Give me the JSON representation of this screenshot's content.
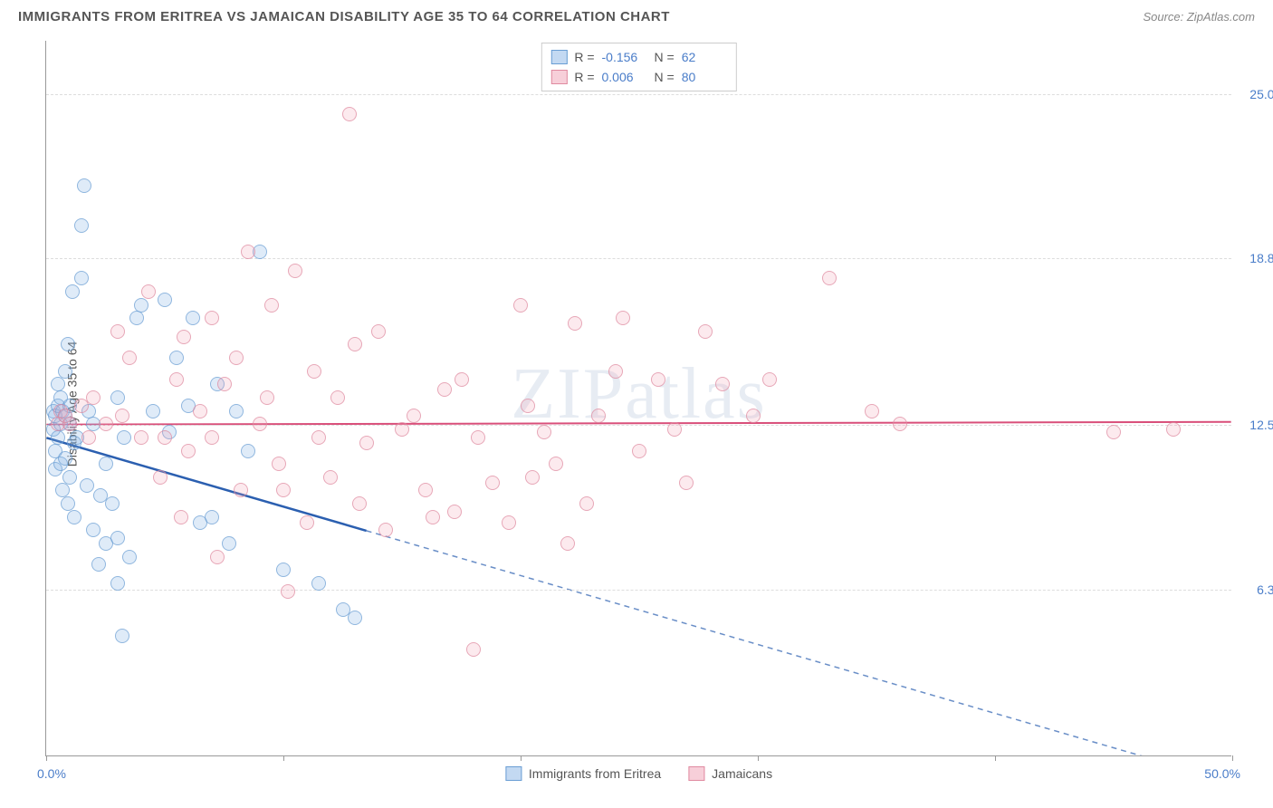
{
  "header": {
    "title": "IMMIGRANTS FROM ERITREA VS JAMAICAN DISABILITY AGE 35 TO 64 CORRELATION CHART",
    "source_prefix": "Source: ",
    "source": "ZipAtlas.com"
  },
  "watermark": "ZIPatlas",
  "chart": {
    "type": "scatter",
    "ylabel": "Disability Age 35 to 64",
    "xlim": [
      0,
      50
    ],
    "ylim": [
      0,
      27
    ],
    "x_ticks": [
      0,
      10,
      20,
      30,
      40,
      50
    ],
    "x_tick_labels": {
      "left": "0.0%",
      "right": "50.0%"
    },
    "y_gridlines": [
      6.3,
      12.5,
      18.8,
      25.0
    ],
    "y_tick_labels": [
      "6.3%",
      "12.5%",
      "18.8%",
      "25.0%"
    ],
    "grid_color": "#dddddd",
    "background_color": "#ffffff",
    "axis_color": "#999999",
    "tick_label_color": "#4a7dc9",
    "marker_size": 16,
    "series": [
      {
        "name": "Immigrants from Eritrea",
        "color_fill": "rgba(135,180,230,0.35)",
        "color_stroke": "#6a9ed4",
        "R": "-0.156",
        "N": "62",
        "trend": {
          "y_at_x0": 12.0,
          "y_at_xmax": -1.0,
          "solid_until_x": 13.5,
          "stroke": "#2b5fb0",
          "width": 2.5
        },
        "points": [
          [
            0.3,
            12.3
          ],
          [
            0.3,
            13.0
          ],
          [
            0.4,
            12.8
          ],
          [
            0.4,
            11.5
          ],
          [
            0.4,
            10.8
          ],
          [
            0.5,
            13.2
          ],
          [
            0.5,
            12.0
          ],
          [
            0.5,
            14.0
          ],
          [
            0.6,
            11.0
          ],
          [
            0.6,
            12.5
          ],
          [
            0.6,
            13.5
          ],
          [
            0.7,
            10.0
          ],
          [
            0.7,
            13.0
          ],
          [
            0.8,
            11.2
          ],
          [
            0.8,
            12.8
          ],
          [
            0.8,
            14.5
          ],
          [
            0.9,
            15.5
          ],
          [
            0.9,
            9.5
          ],
          [
            1.0,
            12.5
          ],
          [
            1.0,
            10.5
          ],
          [
            1.0,
            13.2
          ],
          [
            1.1,
            17.5
          ],
          [
            1.2,
            11.8
          ],
          [
            1.2,
            9.0
          ],
          [
            1.3,
            12.0
          ],
          [
            1.5,
            18.0
          ],
          [
            1.5,
            20.0
          ],
          [
            1.6,
            21.5
          ],
          [
            1.7,
            10.2
          ],
          [
            1.8,
            13.0
          ],
          [
            2.0,
            8.5
          ],
          [
            2.0,
            12.5
          ],
          [
            2.2,
            7.2
          ],
          [
            2.3,
            9.8
          ],
          [
            2.5,
            8.0
          ],
          [
            2.5,
            11.0
          ],
          [
            2.8,
            9.5
          ],
          [
            3.0,
            8.2
          ],
          [
            3.0,
            6.5
          ],
          [
            3.0,
            13.5
          ],
          [
            3.2,
            4.5
          ],
          [
            3.3,
            12.0
          ],
          [
            3.5,
            7.5
          ],
          [
            3.8,
            16.5
          ],
          [
            4.0,
            17.0
          ],
          [
            4.5,
            13.0
          ],
          [
            5.0,
            17.2
          ],
          [
            5.2,
            12.2
          ],
          [
            5.5,
            15.0
          ],
          [
            6.0,
            13.2
          ],
          [
            6.2,
            16.5
          ],
          [
            6.5,
            8.8
          ],
          [
            7.0,
            9.0
          ],
          [
            7.2,
            14.0
          ],
          [
            7.7,
            8.0
          ],
          [
            8.0,
            13.0
          ],
          [
            8.5,
            11.5
          ],
          [
            9.0,
            19.0
          ],
          [
            10.0,
            7.0
          ],
          [
            11.5,
            6.5
          ],
          [
            12.5,
            5.5
          ],
          [
            13.0,
            5.2
          ]
        ]
      },
      {
        "name": "Jamaicans",
        "color_fill": "rgba(240,160,180,0.30)",
        "color_stroke": "#e08aa0",
        "R": "0.006",
        "N": "80",
        "trend": {
          "y_at_x0": 12.5,
          "y_at_xmax": 12.6,
          "solid_until_x": 50,
          "stroke": "#d94f7a",
          "width": 2
        },
        "points": [
          [
            0.5,
            12.5
          ],
          [
            0.6,
            13.0
          ],
          [
            0.8,
            12.8
          ],
          [
            1.0,
            12.5
          ],
          [
            1.5,
            13.2
          ],
          [
            1.8,
            12.0
          ],
          [
            2.0,
            13.5
          ],
          [
            2.5,
            12.5
          ],
          [
            3.0,
            16.0
          ],
          [
            3.2,
            12.8
          ],
          [
            3.5,
            15.0
          ],
          [
            4.0,
            12.0
          ],
          [
            4.3,
            17.5
          ],
          [
            4.8,
            10.5
          ],
          [
            5.0,
            12.0
          ],
          [
            5.5,
            14.2
          ],
          [
            5.7,
            9.0
          ],
          [
            5.8,
            15.8
          ],
          [
            6.0,
            11.5
          ],
          [
            6.5,
            13.0
          ],
          [
            7.0,
            16.5
          ],
          [
            7.0,
            12.0
          ],
          [
            7.2,
            7.5
          ],
          [
            7.5,
            14.0
          ],
          [
            8.0,
            15.0
          ],
          [
            8.2,
            10.0
          ],
          [
            8.5,
            19.0
          ],
          [
            9.0,
            12.5
          ],
          [
            9.3,
            13.5
          ],
          [
            9.5,
            17.0
          ],
          [
            9.8,
            11.0
          ],
          [
            10.0,
            10.0
          ],
          [
            10.2,
            6.2
          ],
          [
            10.5,
            18.3
          ],
          [
            11.0,
            8.8
          ],
          [
            11.3,
            14.5
          ],
          [
            11.5,
            12.0
          ],
          [
            12.0,
            10.5
          ],
          [
            12.3,
            13.5
          ],
          [
            12.8,
            24.2
          ],
          [
            13.0,
            15.5
          ],
          [
            13.2,
            9.5
          ],
          [
            13.5,
            11.8
          ],
          [
            14.0,
            16.0
          ],
          [
            14.3,
            8.5
          ],
          [
            15.0,
            12.3
          ],
          [
            15.5,
            12.8
          ],
          [
            16.0,
            10.0
          ],
          [
            16.3,
            9.0
          ],
          [
            16.8,
            13.8
          ],
          [
            17.2,
            9.2
          ],
          [
            17.5,
            14.2
          ],
          [
            18.0,
            4.0
          ],
          [
            18.2,
            12.0
          ],
          [
            18.8,
            10.3
          ],
          [
            19.5,
            8.8
          ],
          [
            20.0,
            17.0
          ],
          [
            20.3,
            13.2
          ],
          [
            20.5,
            10.5
          ],
          [
            21.0,
            12.2
          ],
          [
            21.5,
            11.0
          ],
          [
            22.0,
            8.0
          ],
          [
            22.3,
            16.3
          ],
          [
            22.8,
            9.5
          ],
          [
            23.3,
            12.8
          ],
          [
            24.0,
            14.5
          ],
          [
            24.3,
            16.5
          ],
          [
            25.0,
            11.5
          ],
          [
            25.8,
            14.2
          ],
          [
            26.5,
            12.3
          ],
          [
            27.0,
            10.3
          ],
          [
            27.8,
            16.0
          ],
          [
            28.5,
            14.0
          ],
          [
            29.8,
            12.8
          ],
          [
            30.5,
            14.2
          ],
          [
            33.0,
            18.0
          ],
          [
            34.8,
            13.0
          ],
          [
            36.0,
            12.5
          ],
          [
            45.0,
            12.2
          ],
          [
            47.5,
            12.3
          ]
        ]
      }
    ],
    "bottom_legend": [
      {
        "swatch": "blue",
        "label": "Immigrants from Eritrea"
      },
      {
        "swatch": "pink",
        "label": "Jamaicans"
      }
    ]
  }
}
